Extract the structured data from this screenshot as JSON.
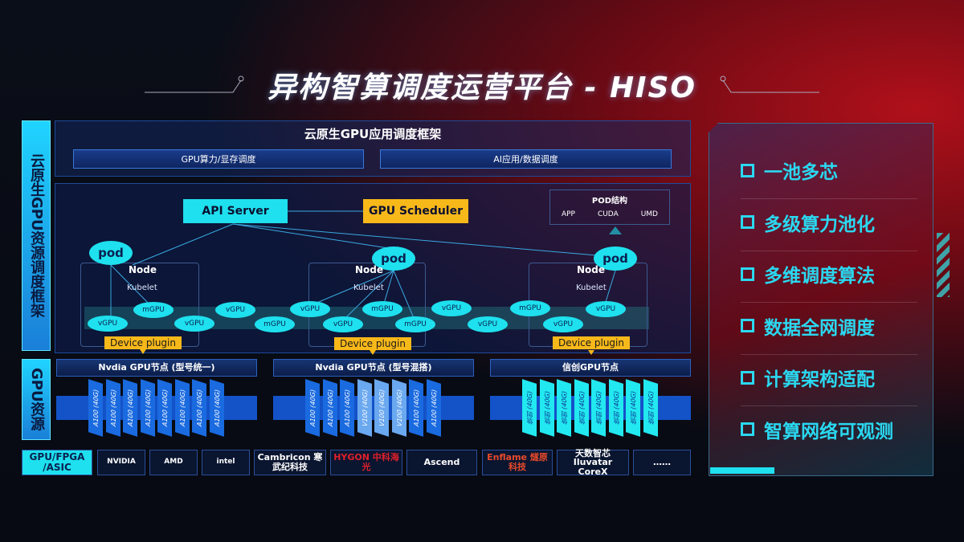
{
  "title": "异构智算调度运营平台 - HISO",
  "side_labels": {
    "framework": "云原生GPU资源调度框架",
    "resources": "GPU资源"
  },
  "top": {
    "title": "云原生GPU应用调度框架",
    "bars": [
      "GPU算力/显存调度",
      "AI应用/数据调度"
    ]
  },
  "diagram": {
    "api_server": "API Server",
    "gpu_scheduler": "GPU Scheduler",
    "pod_structure": {
      "title": "POD结构",
      "items": [
        "APP",
        "CUDA",
        "UMD"
      ]
    },
    "pod": "pod",
    "node": "Node",
    "kubelet": "Kubelet",
    "device_plugin": "Device plugin",
    "units": [
      "vGPU",
      "mGPU",
      "vGPU",
      "vGPU",
      "mGPU",
      "vGPU",
      "vGPU",
      "mGPU",
      "mGPU",
      "vGPU",
      "vGPU",
      "mGPU",
      "vGPU",
      "vGPU"
    ]
  },
  "gpu_groups": [
    {
      "title": "Nvdia GPU节点 (型号统一)",
      "cards": [
        "A100 (40G)",
        "A100 (40G)",
        "A100 (40G)",
        "A100 (40G)",
        "A100 (40G)",
        "A100 (40G)",
        "A100 (40G)",
        "A100 (40G)"
      ]
    },
    {
      "title": "Nvdia GPU节点 (型号混搭)",
      "cards": [
        "A100 (40G)",
        "A100 (40G)",
        "A100 (40G)",
        "V100 (40G)",
        "V100 (40G)",
        "V100 (40G)",
        "A100 (40G)",
        "A100 (40G)"
      ]
    },
    {
      "title": "信创GPU节点",
      "cards": [
        "信创 (40G)",
        "信创 (40G)",
        "信创 (40G)",
        "信创 (40G)",
        "信创 (40G)",
        "信创 (40G)",
        "信创 (40G)",
        "信创 (40G)"
      ]
    }
  ],
  "vendors": {
    "label": "GPU/FPGA /ASIC",
    "items": [
      "NVIDIA",
      "AMD",
      "intel",
      "Cambricon 寒武纪科技",
      "HYGON 中科海光",
      "Ascend",
      "Enflame 燧原科技",
      "天数智芯 Iluvatar CoreX",
      "……"
    ]
  },
  "features": [
    "一池多芯",
    "多级算力池化",
    "多维调度算法",
    "数据全网调度",
    "计算架构适配",
    "智算网络可观测"
  ],
  "colors": {
    "cyan": "#1ee0ee",
    "orange": "#f7b81a",
    "blue": "#1452c8",
    "red": "#b0101a"
  }
}
